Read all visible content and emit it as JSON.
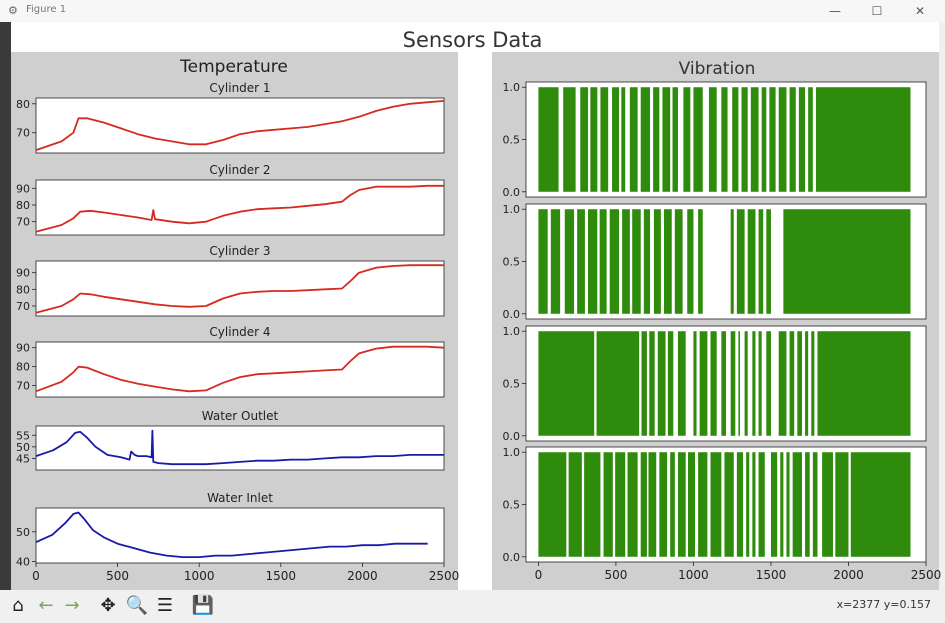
{
  "window": {
    "title": "Figure 1",
    "minimize": "—",
    "maximize": "☐",
    "close": "✕"
  },
  "figure": {
    "suptitle": "Sensors Data"
  },
  "toolbar": {
    "coords": "x=2377  y=0.157",
    "buttons": [
      {
        "name": "home-icon",
        "glyph": "⌂"
      },
      {
        "name": "back-icon",
        "glyph": "←"
      },
      {
        "name": "forward-icon",
        "glyph": "→"
      },
      {
        "name": "pan-icon",
        "glyph": "✥"
      },
      {
        "name": "zoom-icon",
        "glyph": "🔍"
      },
      {
        "name": "configure-subplots-icon",
        "glyph": "☰"
      },
      {
        "name": "save-icon",
        "glyph": "💾"
      }
    ]
  },
  "colors": {
    "temp_cyl": "#d62a1e",
    "water": "#1a1aa8",
    "vibration": "#2e8b0c"
  },
  "chart_data": [
    {
      "type": "line",
      "group_title": "Temperature",
      "title": "Cylinder 1",
      "xlim": [
        0,
        2400
      ],
      "ylim": [
        63,
        82
      ],
      "yticks": [
        70,
        80
      ],
      "series": [
        {
          "x": [
            0,
            150,
            220,
            250,
            300,
            400,
            500,
            600,
            700,
            800,
            900,
            1000,
            1100,
            1200,
            1300,
            1400,
            1500,
            1600,
            1700,
            1800,
            1900,
            2000,
            2100,
            2200,
            2300,
            2400
          ],
          "y": [
            64,
            67,
            70,
            75,
            75,
            73.5,
            71.5,
            69.5,
            68,
            67,
            66,
            66,
            67.5,
            69.5,
            70.5,
            71,
            71.5,
            72,
            73,
            74,
            75.5,
            77.5,
            79,
            80,
            80.5,
            81
          ]
        }
      ]
    },
    {
      "type": "line",
      "title": "Cylinder 2",
      "xlim": [
        0,
        2400
      ],
      "ylim": [
        62,
        95
      ],
      "yticks": [
        70,
        80,
        90
      ],
      "series": [
        {
          "x": [
            0,
            150,
            220,
            260,
            320,
            400,
            500,
            600,
            680,
            690,
            700,
            800,
            900,
            1000,
            1100,
            1200,
            1300,
            1400,
            1500,
            1600,
            1700,
            1800,
            1850,
            1900,
            2000,
            2100,
            2200,
            2300,
            2400
          ],
          "y": [
            64,
            68,
            72,
            76,
            76.5,
            75.5,
            74,
            72.5,
            71,
            77,
            71.5,
            70,
            69,
            70,
            73.5,
            76,
            77.5,
            78,
            78.5,
            79.5,
            80.5,
            82,
            86,
            89,
            91,
            91,
            91,
            91.5,
            91.5
          ]
        }
      ]
    },
    {
      "type": "line",
      "title": "Cylinder 3",
      "xlim": [
        0,
        2400
      ],
      "ylim": [
        64,
        97
      ],
      "yticks": [
        70,
        80,
        90
      ],
      "series": [
        {
          "x": [
            0,
            150,
            220,
            260,
            320,
            400,
            500,
            600,
            700,
            800,
            900,
            1000,
            1100,
            1200,
            1300,
            1400,
            1500,
            1600,
            1700,
            1800,
            1850,
            1900,
            2000,
            2100,
            2200,
            2300,
            2400
          ],
          "y": [
            66,
            70,
            74,
            77.5,
            77,
            75.5,
            74,
            72.5,
            71,
            70,
            69.5,
            70,
            74.5,
            77.5,
            78.5,
            79,
            79,
            79.5,
            80,
            80.5,
            85,
            90,
            93,
            94,
            94.5,
            94.5,
            94.5
          ]
        }
      ]
    },
    {
      "type": "line",
      "title": "Cylinder 4",
      "xlim": [
        0,
        2400
      ],
      "ylim": [
        64,
        93
      ],
      "yticks": [
        70,
        80,
        90
      ],
      "series": [
        {
          "x": [
            0,
            150,
            220,
            250,
            300,
            400,
            500,
            600,
            700,
            800,
            900,
            1000,
            1100,
            1200,
            1300,
            1400,
            1500,
            1600,
            1700,
            1800,
            1850,
            1900,
            2000,
            2100,
            2200,
            2300,
            2400
          ],
          "y": [
            67,
            72,
            77,
            80,
            79.5,
            76,
            73,
            71,
            69.5,
            68,
            67,
            67.5,
            71.5,
            74.5,
            76,
            76.5,
            77,
            77.5,
            78,
            78.5,
            83,
            87,
            89.5,
            90.5,
            90.5,
            90.5,
            90
          ]
        }
      ]
    },
    {
      "type": "line",
      "title": "Water Outlet",
      "xlim": [
        0,
        2400
      ],
      "ylim": [
        40,
        59
      ],
      "yticks": [
        45,
        50,
        55
      ],
      "series": [
        {
          "x": [
            0,
            100,
            180,
            230,
            260,
            300,
            350,
            420,
            500,
            550,
            560,
            580,
            600,
            650,
            680,
            685,
            690,
            720,
            800,
            900,
            1000,
            1100,
            1200,
            1300,
            1400,
            1500,
            1600,
            1700,
            1800,
            1900,
            2000,
            2100,
            2200,
            2300,
            2400
          ],
          "y": [
            46,
            48.5,
            52,
            56,
            56.5,
            54,
            50,
            46.5,
            45.5,
            44.5,
            48,
            46.5,
            46,
            46,
            45.5,
            57,
            43.5,
            43,
            42.5,
            42.5,
            42.5,
            43,
            43.5,
            44,
            44,
            44.5,
            44.5,
            45,
            45.5,
            45.5,
            46,
            46,
            46.5,
            46.5,
            46.5
          ]
        }
      ]
    },
    {
      "type": "line",
      "title": "Water Inlet",
      "xlim": [
        0,
        2500
      ],
      "ylim": [
        39.5,
        58
      ],
      "yticks": [
        40,
        50
      ],
      "xticks": [
        0,
        500,
        1000,
        1500,
        2000,
        2500
      ],
      "series": [
        {
          "x": [
            0,
            100,
            180,
            230,
            260,
            300,
            350,
            420,
            500,
            600,
            700,
            800,
            900,
            1000,
            1100,
            1200,
            1300,
            1400,
            1500,
            1600,
            1700,
            1800,
            1900,
            2000,
            2100,
            2200,
            2300,
            2400
          ],
          "y": [
            46.5,
            49,
            53,
            56,
            56.5,
            54,
            50.5,
            48,
            46,
            44.5,
            43,
            42,
            41.5,
            41.5,
            42,
            42,
            42.5,
            43,
            43.5,
            44,
            44.5,
            45,
            45,
            45.5,
            45.5,
            46,
            46,
            46
          ]
        }
      ]
    },
    {
      "type": "bar",
      "group_title": "Vibration",
      "title": "",
      "xlim": [
        -80,
        2500
      ],
      "ylim": [
        -0.05,
        1.05
      ],
      "yticks": [
        0.0,
        0.5,
        1.0
      ],
      "value": 1.0,
      "off_intervals": [
        [
          130,
          160
        ],
        [
          240,
          270
        ],
        [
          320,
          335
        ],
        [
          380,
          400
        ],
        [
          450,
          475
        ],
        [
          520,
          535
        ],
        [
          560,
          590
        ],
        [
          640,
          660
        ],
        [
          720,
          740
        ],
        [
          780,
          800
        ],
        [
          850,
          865
        ],
        [
          900,
          935
        ],
        [
          980,
          1000
        ],
        [
          1060,
          1100
        ],
        [
          1150,
          1180
        ],
        [
          1220,
          1250
        ],
        [
          1290,
          1310
        ],
        [
          1350,
          1370
        ],
        [
          1420,
          1440
        ],
        [
          1470,
          1490
        ],
        [
          1530,
          1550
        ],
        [
          1600,
          1620
        ],
        [
          1660,
          1680
        ],
        [
          1720,
          1740
        ],
        [
          1770,
          1790
        ]
      ]
    },
    {
      "type": "bar",
      "title": "",
      "xlim": [
        -80,
        2500
      ],
      "ylim": [
        -0.05,
        1.05
      ],
      "yticks": [
        0.0,
        0.5,
        1.0
      ],
      "value": 1.0,
      "off_intervals": [
        [
          60,
          80
        ],
        [
          140,
          170
        ],
        [
          230,
          250
        ],
        [
          300,
          320
        ],
        [
          380,
          395
        ],
        [
          440,
          460
        ],
        [
          520,
          540
        ],
        [
          590,
          605
        ],
        [
          660,
          680
        ],
        [
          720,
          745
        ],
        [
          790,
          810
        ],
        [
          860,
          880
        ],
        [
          930,
          960
        ],
        [
          1000,
          1030
        ],
        [
          1060,
          1240
        ],
        [
          1260,
          1280
        ],
        [
          1330,
          1350
        ],
        [
          1400,
          1420
        ],
        [
          1450,
          1470
        ],
        [
          1500,
          1580
        ]
      ]
    },
    {
      "type": "bar",
      "title": "",
      "xlim": [
        -80,
        2500
      ],
      "ylim": [
        -0.05,
        1.05
      ],
      "yticks": [
        0.0,
        0.5,
        1.0
      ],
      "value": 1.0,
      "off_intervals": [
        [
          360,
          375
        ],
        [
          650,
          665
        ],
        [
          700,
          715
        ],
        [
          750,
          770
        ],
        [
          820,
          835
        ],
        [
          870,
          900
        ],
        [
          950,
          1000
        ],
        [
          1020,
          1040
        ],
        [
          1090,
          1110
        ],
        [
          1150,
          1180
        ],
        [
          1210,
          1240
        ],
        [
          1270,
          1290
        ],
        [
          1300,
          1330
        ],
        [
          1350,
          1380
        ],
        [
          1400,
          1420
        ],
        [
          1440,
          1470
        ],
        [
          1500,
          1550
        ],
        [
          1600,
          1620
        ],
        [
          1650,
          1670
        ],
        [
          1700,
          1720
        ],
        [
          1740,
          1760
        ],
        [
          1780,
          1800
        ]
      ]
    },
    {
      "type": "bar",
      "title": "",
      "xlim": [
        -80,
        2500
      ],
      "ylim": [
        -0.05,
        1.05
      ],
      "yticks": [
        0.0,
        0.5,
        1.0
      ],
      "xticks": [
        0,
        500,
        1000,
        1500,
        2000,
        2500
      ],
      "value": 1.0,
      "off_intervals": [
        [
          180,
          195
        ],
        [
          280,
          295
        ],
        [
          400,
          420
        ],
        [
          480,
          495
        ],
        [
          560,
          575
        ],
        [
          640,
          660
        ],
        [
          700,
          710
        ],
        [
          760,
          780
        ],
        [
          830,
          850
        ],
        [
          880,
          900
        ],
        [
          950,
          965
        ],
        [
          1010,
          1030
        ],
        [
          1090,
          1110
        ],
        [
          1180,
          1200
        ],
        [
          1260,
          1280
        ],
        [
          1320,
          1340
        ],
        [
          1360,
          1380
        ],
        [
          1400,
          1420
        ],
        [
          1460,
          1500
        ],
        [
          1540,
          1560
        ],
        [
          1580,
          1600
        ],
        [
          1620,
          1640
        ],
        [
          1700,
          1720
        ],
        [
          1750,
          1770
        ],
        [
          1800,
          1830
        ],
        [
          1900,
          1915
        ],
        [
          2000,
          2015
        ]
      ]
    }
  ]
}
